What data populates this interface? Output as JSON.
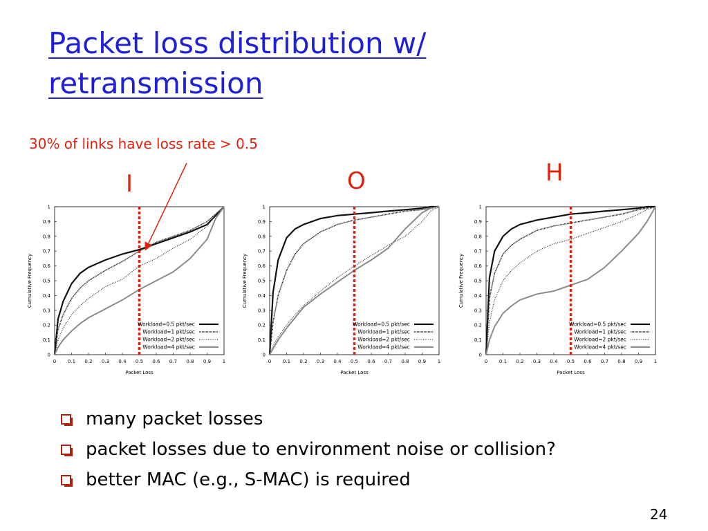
{
  "slide": {
    "title": "Packet loss distribution w/ retransmission",
    "annotation": "30% of links have loss rate > 0.5",
    "bullets": [
      "many packet losses",
      "packet losses due to environment noise or collision?",
      "better MAC (e.g., S-MAC) is required"
    ],
    "page_number": "24"
  },
  "colors": {
    "title": "#1f1fd6",
    "annotation": "#e0210e",
    "threshold_line": "#e0210e",
    "bullet_box": "#b2200f"
  },
  "chart_data": [
    {
      "type": "line",
      "panel_label": "I",
      "xlabel": "Packet Loss",
      "ylabel": "Cumulative Frequency",
      "xlim": [
        0,
        1
      ],
      "ylim": [
        0,
        1
      ],
      "xticks": [
        "0",
        "0.1",
        "0.2",
        "0.3",
        "0.4",
        "0.5",
        "0.6",
        "0.7",
        "0.8",
        "0.9",
        "1"
      ],
      "yticks": [
        "0",
        "0.1",
        "0.2",
        "0.3",
        "0.4",
        "0.5",
        "0.6",
        "0.7",
        "0.8",
        "0.9",
        "1"
      ],
      "legend_position": "bottom-right",
      "threshold_x": 0.5,
      "x": [
        0,
        0.02,
        0.05,
        0.1,
        0.15,
        0.2,
        0.3,
        0.4,
        0.5,
        0.6,
        0.7,
        0.8,
        0.9,
        0.95,
        1
      ],
      "series": [
        {
          "name": "Workload=0.5 pkt/sec",
          "style": "solid-thick",
          "values": [
            0,
            0.24,
            0.36,
            0.48,
            0.55,
            0.59,
            0.64,
            0.68,
            0.71,
            0.75,
            0.79,
            0.83,
            0.88,
            0.94,
            1
          ]
        },
        {
          "name": "Workload=1 pkt/sec",
          "style": "dotted-dense",
          "values": [
            0,
            0.17,
            0.27,
            0.38,
            0.45,
            0.5,
            0.57,
            0.63,
            0.7,
            0.76,
            0.8,
            0.84,
            0.9,
            0.95,
            1
          ]
        },
        {
          "name": "Workload=2 pkt/sec",
          "style": "dotted",
          "values": [
            0,
            0.1,
            0.18,
            0.27,
            0.33,
            0.38,
            0.46,
            0.51,
            0.6,
            0.65,
            0.72,
            0.78,
            0.87,
            0.94,
            1
          ]
        },
        {
          "name": "Workload=4 pkt/sec",
          "style": "gray",
          "values": [
            0,
            0.05,
            0.1,
            0.16,
            0.21,
            0.25,
            0.31,
            0.37,
            0.44,
            0.5,
            0.56,
            0.65,
            0.78,
            0.92,
            1
          ]
        }
      ]
    },
    {
      "type": "line",
      "panel_label": "O",
      "xlabel": "Packet Loss",
      "ylabel": "Cumulative Frequency",
      "xlim": [
        0,
        1
      ],
      "ylim": [
        0,
        1
      ],
      "xticks": [
        "0",
        "0.1",
        "0.2",
        "0.3",
        "0.4",
        "0.5",
        "0.6",
        "0.7",
        "0.8",
        "0.9",
        "1"
      ],
      "yticks": [
        "0",
        "0.1",
        "0.2",
        "0.3",
        "0.4",
        "0.5",
        "0.6",
        "0.7",
        "0.8",
        "0.9",
        "1"
      ],
      "legend_position": "bottom-right",
      "threshold_x": 0.5,
      "x": [
        0,
        0.02,
        0.05,
        0.1,
        0.15,
        0.2,
        0.3,
        0.4,
        0.5,
        0.6,
        0.7,
        0.8,
        0.9,
        0.95,
        1
      ],
      "series": [
        {
          "name": "Workload=0.5 pkt/sec",
          "style": "solid-thick",
          "values": [
            0,
            0.42,
            0.64,
            0.79,
            0.85,
            0.88,
            0.92,
            0.94,
            0.95,
            0.96,
            0.97,
            0.98,
            0.99,
            1,
            1
          ]
        },
        {
          "name": "Workload=1 pkt/sec",
          "style": "dotted-dense",
          "values": [
            0,
            0.22,
            0.4,
            0.57,
            0.68,
            0.75,
            0.83,
            0.88,
            0.91,
            0.93,
            0.95,
            0.97,
            0.98,
            0.99,
            1
          ]
        },
        {
          "name": "Workload=2 pkt/sec",
          "style": "dotted",
          "values": [
            0,
            0.06,
            0.12,
            0.2,
            0.27,
            0.33,
            0.43,
            0.52,
            0.6,
            0.67,
            0.74,
            0.8,
            0.9,
            0.97,
            1
          ]
        },
        {
          "name": "Workload=4 pkt/sec",
          "style": "gray",
          "values": [
            0,
            0.04,
            0.1,
            0.18,
            0.25,
            0.32,
            0.41,
            0.49,
            0.57,
            0.64,
            0.72,
            0.85,
            0.96,
            0.99,
            1
          ]
        }
      ]
    },
    {
      "type": "line",
      "panel_label": "H",
      "xlabel": "Packet Loss",
      "ylabel": "Cumulative Frequency",
      "xlim": [
        0,
        1
      ],
      "ylim": [
        0,
        1
      ],
      "xticks": [
        "0",
        "0.1",
        "0.2",
        "0.3",
        "0.4",
        "0.5",
        "0.6",
        "0.7",
        "0.8",
        "0.9",
        "1"
      ],
      "yticks": [
        "0",
        "0.1",
        "0.2",
        "0.3",
        "0.4",
        "0.5",
        "0.6",
        "0.7",
        "0.8",
        "0.9",
        "1"
      ],
      "legend_position": "bottom-right",
      "threshold_x": 0.5,
      "x": [
        0,
        0.02,
        0.05,
        0.1,
        0.15,
        0.2,
        0.3,
        0.4,
        0.5,
        0.6,
        0.7,
        0.8,
        0.9,
        0.95,
        1
      ],
      "series": [
        {
          "name": "Workload=0.5 pkt/sec",
          "style": "solid-thick",
          "values": [
            0,
            0.52,
            0.7,
            0.8,
            0.85,
            0.88,
            0.91,
            0.93,
            0.95,
            0.96,
            0.97,
            0.98,
            0.99,
            1,
            1
          ]
        },
        {
          "name": "Workload=1 pkt/sec",
          "style": "dotted-dense",
          "values": [
            0,
            0.38,
            0.55,
            0.68,
            0.74,
            0.78,
            0.84,
            0.87,
            0.89,
            0.91,
            0.93,
            0.95,
            0.98,
            0.99,
            1
          ]
        },
        {
          "name": "Workload=2 pkt/sec",
          "style": "dotted",
          "values": [
            0,
            0.22,
            0.37,
            0.5,
            0.57,
            0.62,
            0.7,
            0.75,
            0.78,
            0.82,
            0.86,
            0.9,
            0.95,
            0.98,
            1
          ]
        },
        {
          "name": "Workload=4 pkt/sec",
          "style": "gray",
          "values": [
            0,
            0.1,
            0.19,
            0.28,
            0.33,
            0.37,
            0.41,
            0.43,
            0.47,
            0.51,
            0.59,
            0.7,
            0.82,
            0.9,
            1
          ]
        }
      ]
    }
  ]
}
